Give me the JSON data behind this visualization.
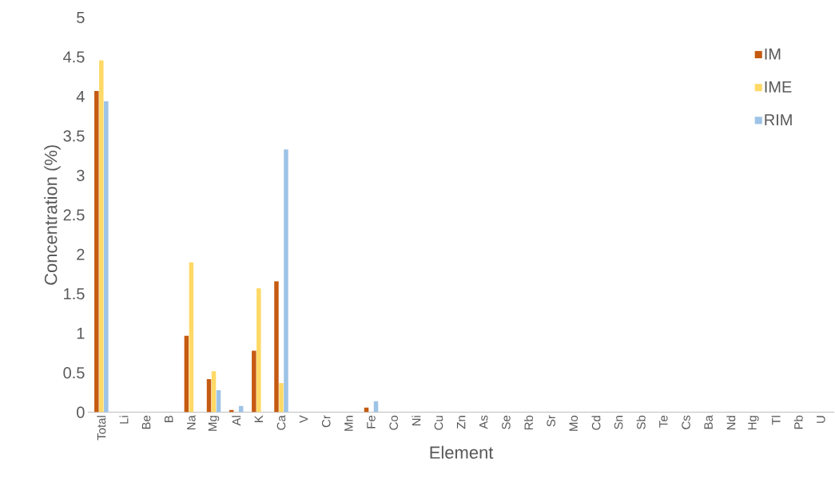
{
  "chart_data": {
    "type": "bar",
    "xlabel": "Element",
    "ylabel": "Concentration (%)",
    "categories": [
      "Total",
      "Li",
      "Be",
      "B",
      "Na",
      "Mg",
      "Al",
      "K",
      "Ca",
      "V",
      "Cr",
      "Mn",
      "Fe",
      "Co",
      "Ni",
      "Cu",
      "Zn",
      "As",
      "Se",
      "Rb",
      "Sr",
      "Mo",
      "Cd",
      "Sn",
      "Sb",
      "Te",
      "Cs",
      "Ba",
      "Nd",
      "Hg",
      "Tl",
      "Pb",
      "U"
    ],
    "series": [
      {
        "name": "IM",
        "color": "#c55a11",
        "values": [
          4.07,
          0,
          0,
          0,
          0.97,
          0.42,
          0.03,
          0.78,
          1.66,
          0,
          0,
          0,
          0.06,
          0,
          0,
          0,
          0,
          0,
          0,
          0,
          0,
          0,
          0,
          0,
          0,
          0,
          0,
          0,
          0,
          0,
          0,
          0,
          0
        ]
      },
      {
        "name": "IME",
        "color": "#ffd966",
        "values": [
          4.46,
          0,
          0,
          0,
          1.9,
          0.52,
          0,
          1.57,
          0.37,
          0,
          0,
          0,
          0,
          0,
          0,
          0,
          0,
          0,
          0,
          0,
          0,
          0,
          0,
          0,
          0,
          0,
          0,
          0,
          0,
          0,
          0,
          0,
          0
        ]
      },
      {
        "name": "RIM",
        "color": "#9dc3e6",
        "values": [
          3.94,
          0,
          0,
          0,
          0,
          0.28,
          0.08,
          0,
          3.33,
          0,
          0,
          0,
          0.14,
          0,
          0,
          0,
          0,
          0,
          0,
          0,
          0,
          0,
          0,
          0,
          0,
          0,
          0,
          0,
          0,
          0,
          0,
          0,
          0
        ]
      }
    ],
    "ylim": [
      0,
      5
    ],
    "yticks": [
      0,
      0.5,
      1,
      1.5,
      2,
      2.5,
      3,
      3.5,
      4,
      4.5,
      5
    ],
    "legend": "top right"
  }
}
